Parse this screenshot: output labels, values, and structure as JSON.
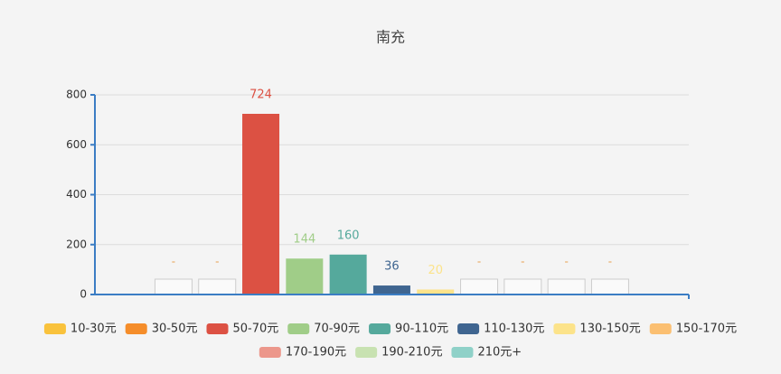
{
  "chart_data": {
    "type": "bar",
    "title": "南充",
    "categories": [
      "10-30元",
      "30-50元",
      "50-70元",
      "70-90元",
      "90-110元",
      "110-130元",
      "130-150元",
      "150-170元",
      "170-190元",
      "190-210元",
      "210元+"
    ],
    "values": [
      null,
      null,
      724,
      144,
      160,
      36,
      20,
      null,
      null,
      null,
      null
    ],
    "value_labels": [
      "-",
      "-",
      "724",
      "144",
      "160",
      "36",
      "20",
      "-",
      "-",
      "-",
      "-"
    ],
    "colors": [
      "#f9c23c",
      "#f58d2a",
      "#dc5143",
      "#a0cd88",
      "#55a99c",
      "#3f6590",
      "#fce38a",
      "#fbbf71",
      "#ec978b",
      "#c8e2b1",
      "#8fd1c8"
    ],
    "ylim": [
      0,
      800
    ],
    "yticks": [
      0,
      200,
      400,
      600,
      800
    ],
    "grid": true
  }
}
